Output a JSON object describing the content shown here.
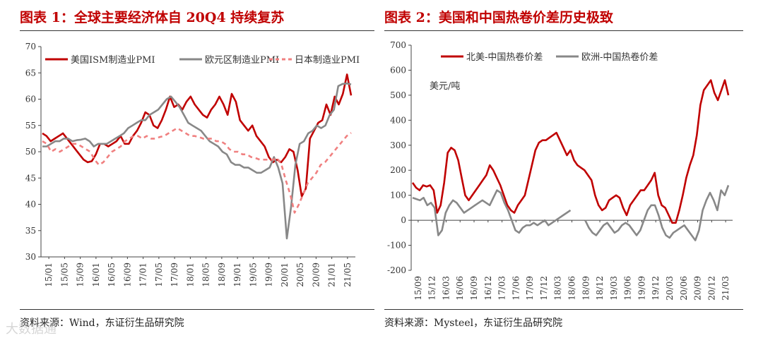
{
  "left": {
    "title": "图表 1：全球主要经济体自 20Q4 持续复苏",
    "source": "资料来源：Wind，东证衍生品研究院"
  },
  "right": {
    "title": "图表 2：美国和中国热卷价差历史极致",
    "source": "资料来源：Mysteel，东证衍生品研究院"
  },
  "watermark": "大数据通",
  "chart_data": [
    {
      "type": "line",
      "title": "全球主要经济体自 20Q4 持续复苏",
      "ylim": [
        30,
        70
      ],
      "yticks": [
        "30",
        "35",
        "40",
        "45",
        "50",
        "55",
        "60",
        "65",
        "70"
      ],
      "x_ticks": [
        "15/01",
        "15/05",
        "15/09",
        "16/01",
        "16/05",
        "16/09",
        "17/01",
        "17/05",
        "17/09",
        "18/01",
        "18/05",
        "18/09",
        "19/01",
        "19/05",
        "19/09",
        "20/01",
        "20/05",
        "20/09",
        "21/01",
        "21/05"
      ],
      "series": [
        {
          "name": "美国ISM制造业PMI",
          "color": "#c00000",
          "dash": "none",
          "values": [
            53.5,
            53,
            52,
            52.5,
            53,
            53.5,
            52.5,
            51.5,
            50.5,
            49.5,
            48.5,
            48,
            48.2,
            49.5,
            51.5,
            51.5,
            51,
            51.5,
            52,
            53,
            51.5,
            51.5,
            53,
            54,
            55.5,
            57.5,
            57,
            55,
            54.5,
            56,
            58,
            60.5,
            58.5,
            59,
            58,
            59.5,
            60.5,
            59,
            58,
            57,
            56.5,
            58,
            59,
            60.5,
            59,
            57,
            61,
            59.5,
            56,
            55,
            54,
            55,
            53,
            52,
            51,
            49,
            48,
            48.5,
            48,
            49,
            50.5,
            50,
            46.5,
            41.5,
            43,
            52.5,
            54,
            55.5,
            56,
            59,
            57,
            60.5,
            59,
            61,
            64.7,
            60.7
          ]
        },
        {
          "name": "欧元区制造业PMI",
          "color": "#888888",
          "dash": "none",
          "values": [
            51,
            51,
            51.5,
            52,
            52,
            52.5,
            52.5,
            52,
            52.2,
            52.3,
            52.5,
            52,
            51,
            51.5,
            51.5,
            51.5,
            52,
            52.5,
            53,
            53.5,
            54.5,
            55,
            55.5,
            56,
            56,
            57,
            57.5,
            58,
            59,
            60,
            60.5,
            59.5,
            58.5,
            57,
            55.5,
            55,
            54.5,
            54,
            53,
            52,
            51.5,
            51,
            50,
            49.5,
            48,
            47.5,
            47.5,
            47,
            47,
            46.5,
            46,
            46,
            46.5,
            47,
            49,
            47,
            44,
            33.5,
            39.5,
            47.5,
            51.5,
            52,
            53.5,
            54,
            55,
            54.5,
            55,
            57,
            58,
            62.5,
            62.9,
            63,
            62.8
          ]
        },
        {
          "name": "日本制造业PMI",
          "color": "#f08080",
          "dash": "6,5",
          "values": [
            52,
            51.5,
            50,
            50.5,
            50,
            50.5,
            51,
            51.5,
            51.5,
            51,
            50.5,
            50,
            48.5,
            47.5,
            48,
            49,
            50,
            50.5,
            51,
            52,
            52.5,
            53,
            53,
            52.5,
            53,
            52.5,
            52.5,
            52.8,
            53,
            53.5,
            54,
            54.5,
            54,
            53.5,
            53,
            53,
            52.8,
            52.5,
            52.5,
            52.5,
            52,
            52,
            51.5,
            50.5,
            50,
            50,
            49.5,
            49.5,
            49,
            48.8,
            48.5,
            48.5,
            48.5,
            48.5,
            48.8,
            47.5,
            44.5,
            41.9,
            38.4,
            40,
            42,
            44,
            45,
            46,
            47.5,
            48,
            49,
            50,
            51,
            52,
            53,
            53.6
          ]
        }
      ]
    },
    {
      "type": "line",
      "title": "美国和中国热卷价差历史极致",
      "ylabel": "美元/吨",
      "ylim": [
        -200,
        700
      ],
      "yticks": [
        "700",
        "600",
        "500",
        "400",
        "300",
        "200",
        "100",
        "0",
        "-100",
        "-200"
      ],
      "x_ticks": [
        "15/09",
        "15/12",
        "16/03",
        "16/06",
        "16/09",
        "16/12",
        "17/03",
        "17/06",
        "17/09",
        "17/12",
        "18/03",
        "18/06",
        "18/09",
        "18/12",
        "19/03",
        "19/06",
        "19/09",
        "19/12",
        "20/03",
        "20/06",
        "20/09",
        "20/12",
        "21/03"
      ],
      "series": [
        {
          "name": "北美-中国热卷价差",
          "color": "#c00000",
          "dash": "none",
          "values": [
            150,
            130,
            120,
            140,
            135,
            140,
            120,
            30,
            60,
            150,
            270,
            290,
            280,
            240,
            170,
            100,
            80,
            100,
            120,
            140,
            160,
            180,
            220,
            200,
            170,
            140,
            100,
            60,
            40,
            30,
            60,
            80,
            100,
            160,
            220,
            280,
            310,
            320,
            320,
            330,
            340,
            350,
            320,
            290,
            260,
            280,
            240,
            220,
            210,
            200,
            180,
            160,
            100,
            60,
            40,
            50,
            80,
            90,
            100,
            90,
            50,
            20,
            60,
            80,
            100,
            120,
            120,
            140,
            160,
            190,
            100,
            60,
            50,
            20,
            -10,
            -10,
            40,
            100,
            170,
            220,
            260,
            340,
            460,
            520,
            540,
            560,
            510,
            480,
            520,
            560,
            500
          ]
        },
        {
          "name": "欧洲-中国热卷价差",
          "color": "#888888",
          "dash": "none",
          "values": [
            90,
            85,
            80,
            90,
            60,
            70,
            50,
            -60,
            -40,
            30,
            60,
            80,
            70,
            50,
            30,
            40,
            50,
            60,
            70,
            80,
            70,
            60,
            90,
            120,
            110,
            70,
            40,
            0,
            -40,
            -50,
            -30,
            -20,
            -20,
            -10,
            -20,
            -10,
            0,
            -20,
            -10,
            0,
            10,
            20,
            30,
            40,
            null,
            null,
            null,
            0,
            -30,
            -50,
            -60,
            -40,
            -20,
            -10,
            -30,
            -50,
            -40,
            -20,
            -10,
            -20,
            -40,
            -60,
            -40,
            0,
            40,
            60,
            60,
            20,
            -30,
            -60,
            -70,
            -50,
            -40,
            -30,
            -20,
            -40,
            -60,
            -80,
            -40,
            40,
            80,
            110,
            80,
            40,
            120,
            100,
            140
          ]
        }
      ]
    }
  ]
}
